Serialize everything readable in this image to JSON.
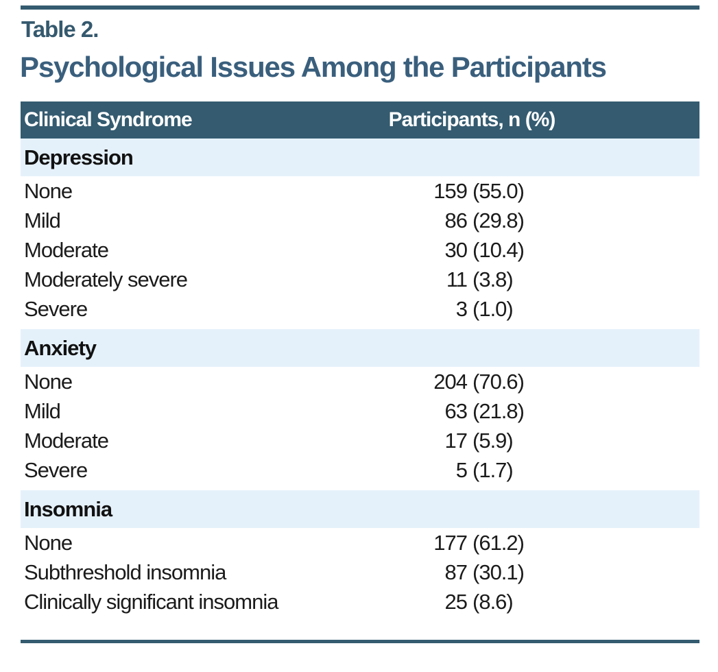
{
  "page": {
    "table_label": "Table 2.",
    "title": "Psychological Issues Among the Participants"
  },
  "table": {
    "columns": {
      "col1": "Clinical Syndrome",
      "col2": "Participants, n (%)"
    },
    "sections": [
      {
        "name": "Depression",
        "rows": [
          {
            "label": "None",
            "n": "159",
            "pct": "(55.0)"
          },
          {
            "label": "Mild",
            "n": "86",
            "pct": "(29.8)"
          },
          {
            "label": "Moderate",
            "n": "30",
            "pct": "(10.4)"
          },
          {
            "label": "Moderately severe",
            "n": "11",
            "pct": "(3.8)"
          },
          {
            "label": "Severe",
            "n": "3",
            "pct": "(1.0)"
          }
        ]
      },
      {
        "name": "Anxiety",
        "rows": [
          {
            "label": "None",
            "n": "204",
            "pct": "(70.6)"
          },
          {
            "label": "Mild",
            "n": "63",
            "pct": "(21.8)"
          },
          {
            "label": "Moderate",
            "n": "17",
            "pct": "(5.9)"
          },
          {
            "label": "Severe",
            "n": "5",
            "pct": "(1.7)"
          }
        ]
      },
      {
        "name": "Insomnia",
        "rows": [
          {
            "label": "None",
            "n": "177",
            "pct": "(61.2)"
          },
          {
            "label": "Subthreshold insomnia",
            "n": "87",
            "pct": "(30.1)"
          },
          {
            "label": "Clinically significant insomnia",
            "n": "25",
            "pct": "(8.6)"
          }
        ]
      }
    ]
  },
  "colors": {
    "header_bg": "#345B70",
    "band_bg": "#E5F1FA",
    "title_color": "#3A5F7D",
    "label_color": "#35596E",
    "rule_color": "#345B70"
  },
  "chart_data": {
    "type": "table",
    "title": "Psychological Issues Among the Participants",
    "columns": [
      "Clinical Syndrome",
      "Participants, n (%)"
    ],
    "groups": [
      {
        "group": "Depression",
        "categories": [
          "None",
          "Mild",
          "Moderate",
          "Moderately severe",
          "Severe"
        ],
        "n": [
          159,
          86,
          30,
          11,
          3
        ],
        "percent": [
          55.0,
          29.8,
          10.4,
          3.8,
          1.0
        ]
      },
      {
        "group": "Anxiety",
        "categories": [
          "None",
          "Mild",
          "Moderate",
          "Severe"
        ],
        "n": [
          204,
          63,
          17,
          5
        ],
        "percent": [
          70.6,
          21.8,
          5.9,
          1.7
        ]
      },
      {
        "group": "Insomnia",
        "categories": [
          "None",
          "Subthreshold insomnia",
          "Clinically significant insomnia"
        ],
        "n": [
          177,
          87,
          25
        ],
        "percent": [
          61.2,
          30.1,
          8.6
        ]
      }
    ]
  }
}
